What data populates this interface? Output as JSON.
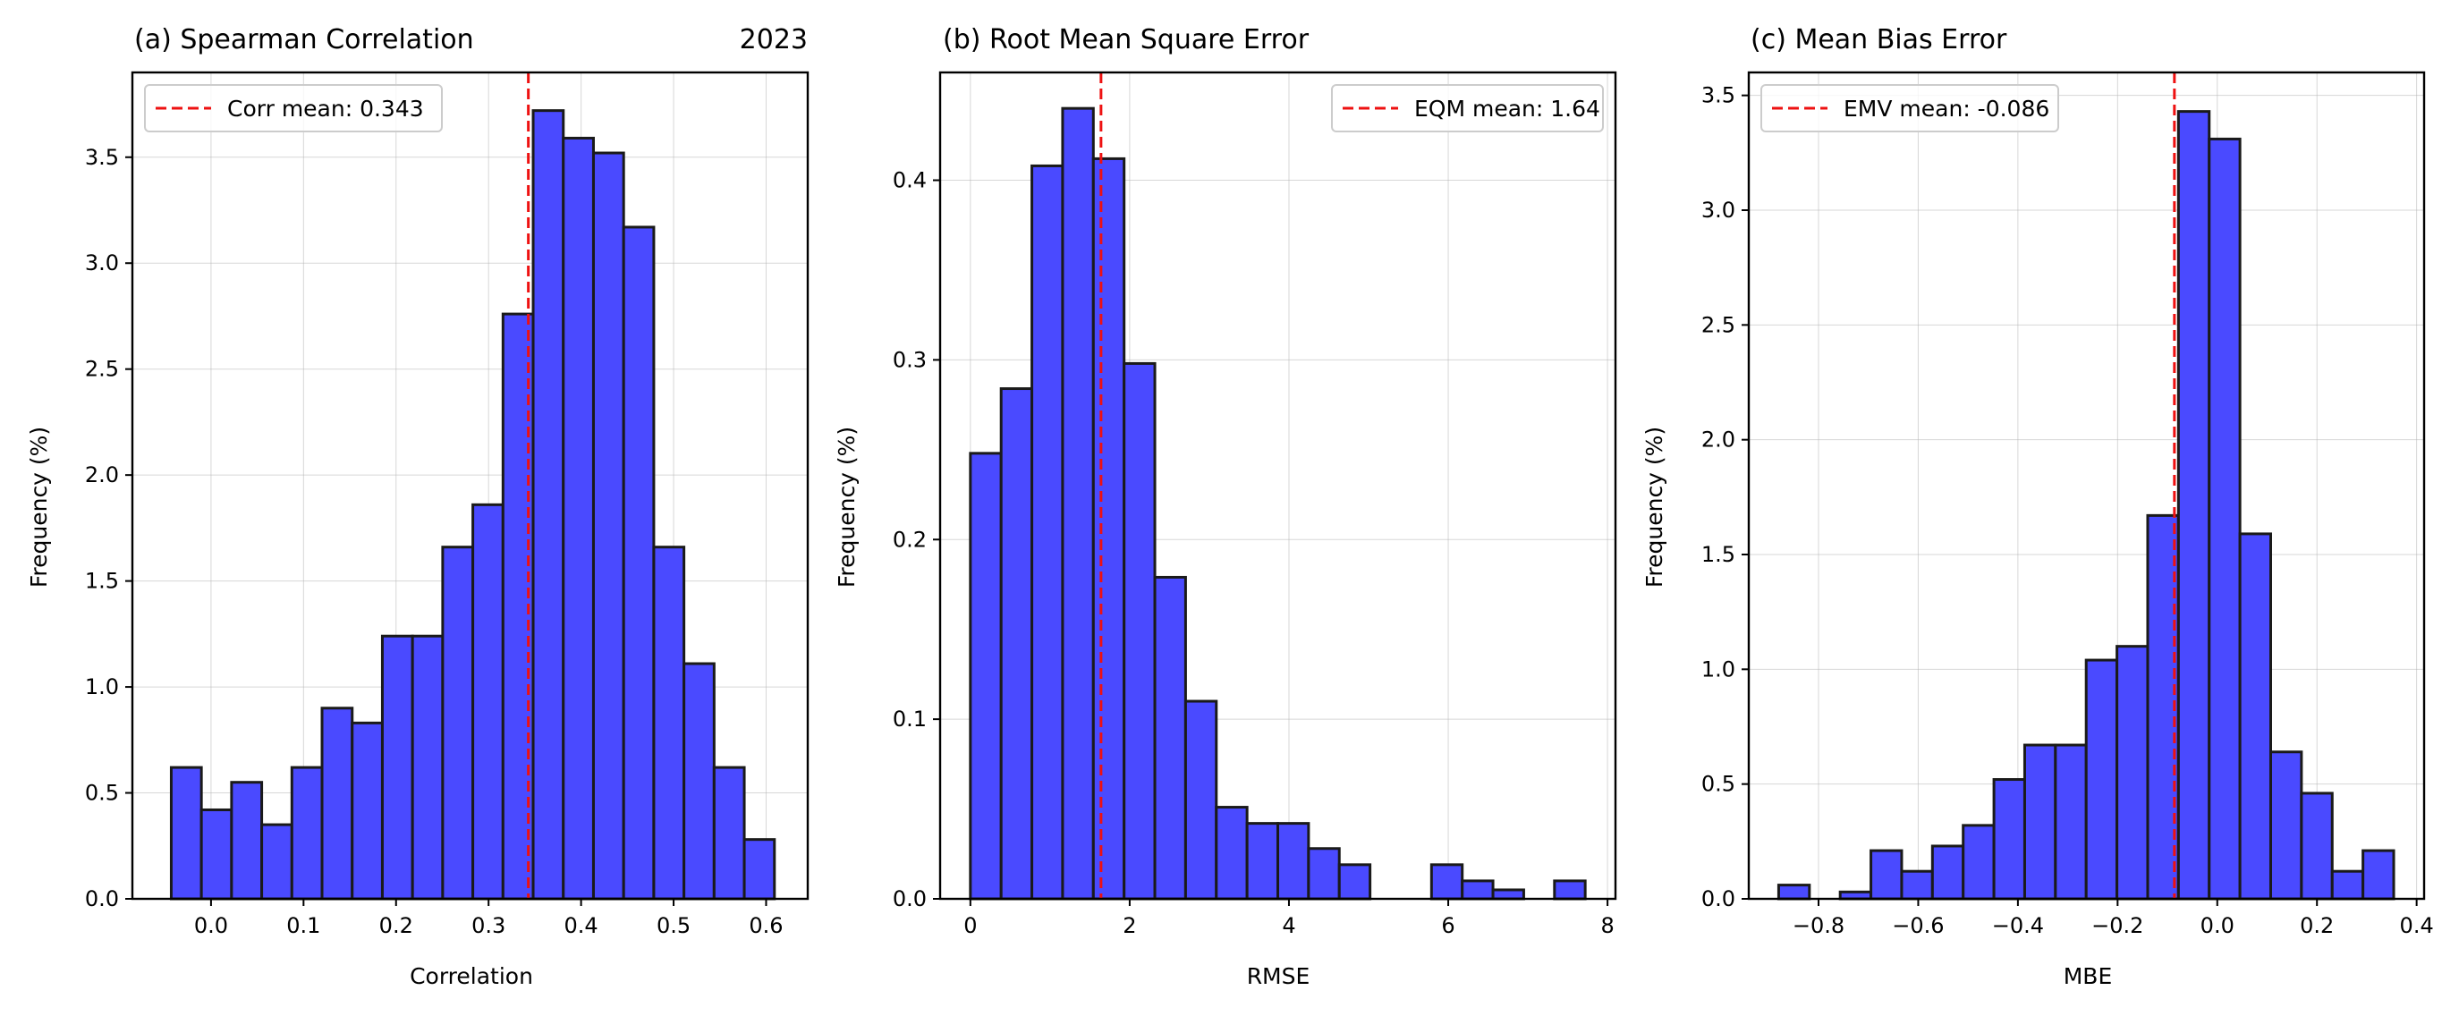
{
  "colors": {
    "bar": "#4a4aff",
    "mean_line": "#ee1111"
  },
  "chart_data": [
    {
      "type": "bar",
      "title": "(a) Spearman Correlation",
      "year": "2023",
      "xlabel": "Correlation",
      "ylabel": "Frequency (%)",
      "xlim": [
        -0.085,
        0.645
      ],
      "ylim": [
        0,
        3.9
      ],
      "xticks": [
        0.0,
        0.1,
        0.2,
        0.3,
        0.4,
        0.5,
        0.6
      ],
      "xtick_labels": [
        "0.0",
        "0.1",
        "0.2",
        "0.3",
        "0.4",
        "0.5",
        "0.6"
      ],
      "yticks": [
        0.0,
        0.5,
        1.0,
        1.5,
        2.0,
        2.5,
        3.0,
        3.5
      ],
      "ytick_labels": [
        "0.0",
        "0.5",
        "1.0",
        "1.5",
        "2.0",
        "2.5",
        "3.0",
        "3.5"
      ],
      "bin_start": -0.043,
      "bin_width": 0.0326,
      "values": [
        0.62,
        0.42,
        0.55,
        0.35,
        0.62,
        0.9,
        0.83,
        1.24,
        1.24,
        1.66,
        1.86,
        2.76,
        3.72,
        3.59,
        3.52,
        3.17,
        1.66,
        1.11,
        0.62,
        0.28
      ],
      "mean": 0.343,
      "legend": "Corr mean: 0.343",
      "legend_position": "upper left",
      "grid": true
    },
    {
      "type": "bar",
      "title": "(b) Root Mean Square Error",
      "xlabel": "RMSE",
      "ylabel": "Frequency (%)",
      "xlim": [
        -0.38,
        8.1
      ],
      "ylim": [
        0,
        0.46
      ],
      "xticks": [
        0,
        2,
        4,
        6,
        8
      ],
      "xtick_labels": [
        "0",
        "2",
        "4",
        "6",
        "8"
      ],
      "yticks": [
        0.0,
        0.1,
        0.2,
        0.3,
        0.4
      ],
      "ytick_labels": [
        "0.0",
        "0.1",
        "0.2",
        "0.3",
        "0.4"
      ],
      "bin_start": 0.0,
      "bin_width": 0.386,
      "values": [
        0.248,
        0.284,
        0.408,
        0.44,
        0.412,
        0.298,
        0.179,
        0.11,
        0.051,
        0.042,
        0.042,
        0.028,
        0.019,
        0.0,
        0.0,
        0.019,
        0.01,
        0.005,
        0.0,
        0.01
      ],
      "mean": 1.64,
      "legend": "EQM mean: 1.64",
      "legend_position": "upper right",
      "grid": true
    },
    {
      "type": "bar",
      "title": "(c) Mean Bias Error",
      "xlabel": "MBE",
      "ylabel": "Frequency (%)",
      "xlim": [
        -0.94,
        0.415
      ],
      "ylim": [
        0,
        3.6
      ],
      "xticks": [
        -0.8,
        -0.6,
        -0.4,
        -0.2,
        0.0,
        0.2,
        0.4
      ],
      "xtick_labels": [
        "−0.8",
        "−0.6",
        "−0.4",
        "−0.2",
        "0.0",
        "0.2",
        "0.4"
      ],
      "yticks": [
        0.0,
        0.5,
        1.0,
        1.5,
        2.0,
        2.5,
        3.0,
        3.5
      ],
      "ytick_labels": [
        "0.0",
        "0.5",
        "1.0",
        "1.5",
        "2.0",
        "2.5",
        "3.0",
        "3.5"
      ],
      "bin_start": -0.88,
      "bin_width": 0.0617,
      "values": [
        0.06,
        0.0,
        0.03,
        0.21,
        0.12,
        0.23,
        0.32,
        0.52,
        0.67,
        0.67,
        1.04,
        1.1,
        1.67,
        3.43,
        3.31,
        1.59,
        0.64,
        0.46,
        0.12,
        0.21
      ],
      "mean": -0.086,
      "legend": "EMV mean: -0.086",
      "legend_position": "upper left",
      "grid": true
    }
  ]
}
